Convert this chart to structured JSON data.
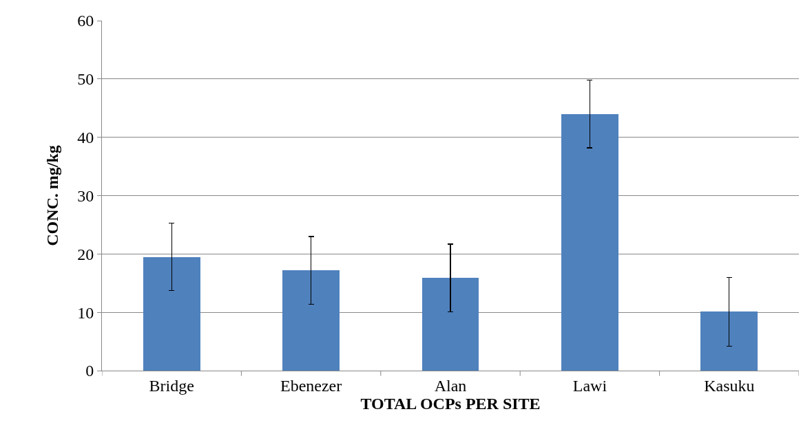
{
  "chart_data": {
    "type": "bar",
    "xlabel": "TOTAL OCPs PER SITE",
    "ylabel": "CONC. mg/kg",
    "categories": [
      "Bridge",
      "Ebenezer",
      "Alan",
      "Lawi",
      "Kasuku"
    ],
    "values": [
      19.5,
      17.2,
      15.9,
      44,
      10.1
    ],
    "errors": [
      5.8,
      5.8,
      5.8,
      5.8,
      5.9
    ],
    "color": "#4f81bd",
    "ylim": [
      0,
      60
    ],
    "yticks": [
      0,
      10,
      20,
      30,
      40,
      50,
      60
    ],
    "grid": "y",
    "legend": false
  }
}
